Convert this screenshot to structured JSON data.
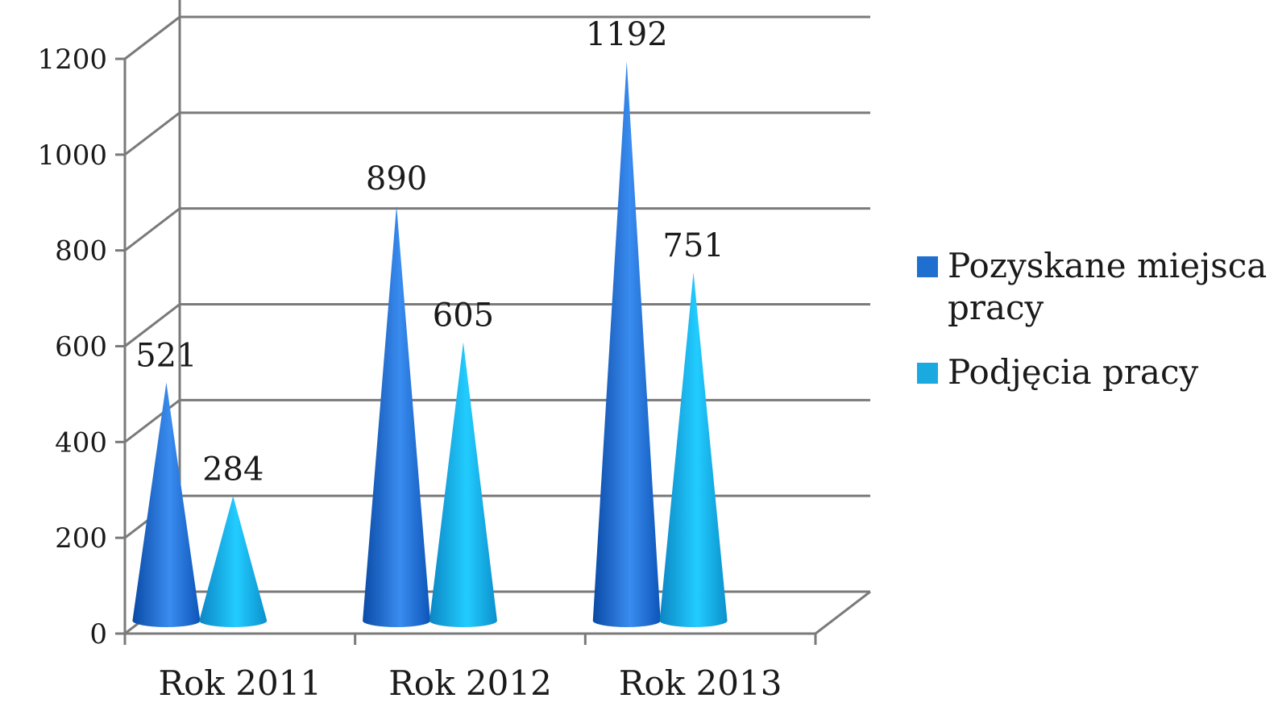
{
  "chart_data": {
    "type": "bar",
    "categories": [
      "Rok 2011",
      "Rok 2012",
      "Rok 2013"
    ],
    "series": [
      {
        "name": "Pozyskane miejsca pracy",
        "values": [
          521,
          890,
          1192
        ],
        "color": "#1f6fd1"
      },
      {
        "name": "Podjęcia pracy",
        "values": [
          284,
          605,
          751
        ],
        "color": "#1aaae0"
      }
    ],
    "ylim": [
      0,
      1200
    ],
    "yticks": [
      0,
      200,
      400,
      600,
      800,
      1000,
      1200
    ],
    "grid": true,
    "legend": {
      "placement": "right",
      "lines": [
        [
          "Pozyskane miejsca",
          "pracy"
        ],
        [
          "Podjęcia pracy"
        ]
      ]
    },
    "mark_shape": "cone"
  }
}
